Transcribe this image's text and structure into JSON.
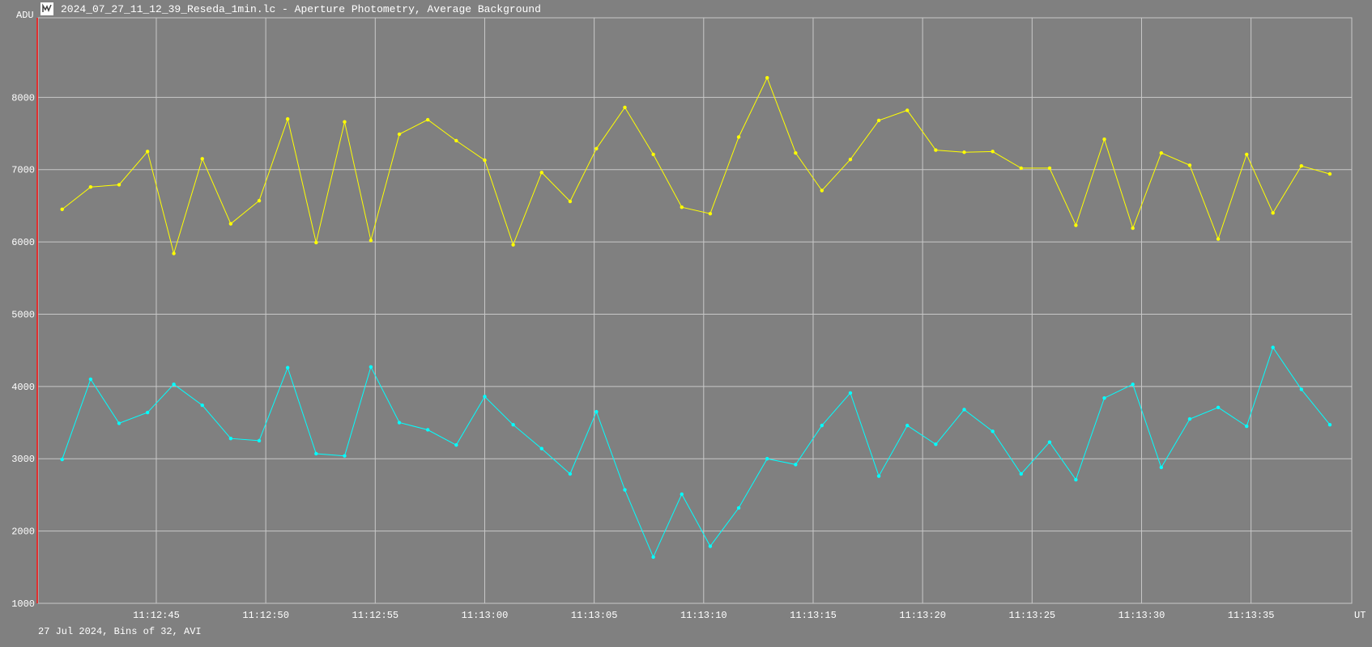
{
  "window": {
    "title": "2024_07_27_11_12_39_Reseda_1min.lc - Aperture Photometry, Average Background",
    "icon": "lightcurve-app-icon"
  },
  "footer": {
    "text": "27 Jul 2024, Bins of 32, AVI"
  },
  "chart_data": {
    "type": "line",
    "ylabel": "ADU",
    "xlabel": "UT",
    "ylim": [
      1000,
      9100
    ],
    "xlim": [
      "11:12:39.6",
      "11:13:39.6"
    ],
    "yticks": [
      1000,
      2000,
      3000,
      4000,
      5000,
      6000,
      7000,
      8000
    ],
    "xticks": [
      "11:12:45",
      "11:12:50",
      "11:12:55",
      "11:13:00",
      "11:13:05",
      "11:13:10",
      "11:13:15",
      "11:13:20",
      "11:13:25",
      "11:13:30",
      "11:13:35"
    ],
    "grid": true,
    "x": [
      "11:12:40.7",
      "11:12:42.0",
      "11:12:43.3",
      "11:12:44.6",
      "11:12:45.8",
      "11:12:47.1",
      "11:12:48.4",
      "11:12:49.7",
      "11:12:51.0",
      "11:12:52.3",
      "11:12:53.6",
      "11:12:54.8",
      "11:12:56.1",
      "11:12:57.4",
      "11:12:58.7",
      "11:13:00.0",
      "11:13:01.3",
      "11:13:02.6",
      "11:13:03.9",
      "11:13:05.1",
      "11:13:06.4",
      "11:13:07.7",
      "11:13:09.0",
      "11:13:10.3",
      "11:13:11.6",
      "11:13:12.9",
      "11:13:14.2",
      "11:13:15.4",
      "11:13:16.7",
      "11:13:18.0",
      "11:13:19.3",
      "11:13:20.6",
      "11:13:21.9",
      "11:13:23.2",
      "11:13:24.5",
      "11:13:25.8",
      "11:13:27.0",
      "11:13:28.3",
      "11:13:29.6",
      "11:13:30.9",
      "11:13:32.2",
      "11:13:33.5",
      "11:13:34.8",
      "11:13:36.0",
      "11:13:37.3",
      "11:13:38.6"
    ],
    "series": [
      {
        "color": "#ffff00",
        "values": [
          6450,
          6760,
          6790,
          7250,
          5840,
          7150,
          6250,
          6570,
          7700,
          5990,
          7660,
          6020,
          7490,
          7690,
          7400,
          7130,
          5960,
          6960,
          6560,
          7290,
          7860,
          7210,
          6480,
          6390,
          7450,
          8270,
          7230,
          6710,
          7140,
          7680,
          7820,
          7270,
          7240,
          7250,
          7020,
          7020,
          6230,
          7420,
          6190,
          7230,
          7060,
          6040,
          7210,
          6400,
          7050,
          6940
        ]
      },
      {
        "color": "#00ffff",
        "values": [
          2990,
          4100,
          3490,
          3640,
          4030,
          3740,
          3280,
          3250,
          4260,
          3070,
          3040,
          4270,
          3500,
          3400,
          3190,
          3860,
          3470,
          3140,
          2790,
          3650,
          2570,
          1640,
          2510,
          1790,
          2320,
          3000,
          2920,
          3460,
          3910,
          2760,
          3460,
          3200,
          3680,
          3380,
          2790,
          3230,
          2710,
          3840,
          4030,
          2880,
          3550,
          3710,
          3450,
          4540,
          3960,
          3470
        ]
      }
    ]
  }
}
